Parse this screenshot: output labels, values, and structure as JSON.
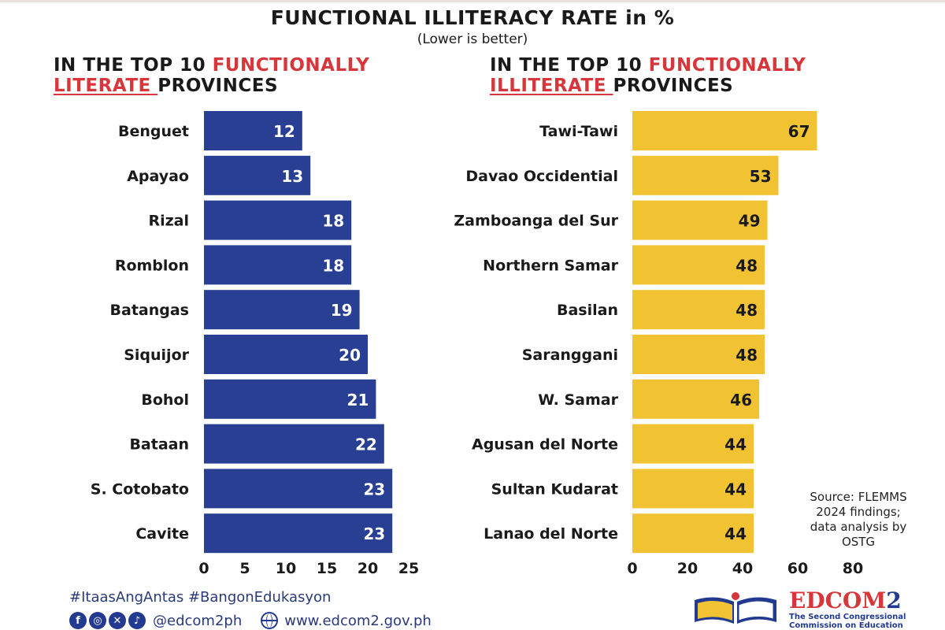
{
  "header": {
    "title": "FUNCTIONAL ILLITERACY RATE in %",
    "subtitle": "(Lower is better)"
  },
  "left_panel": {
    "heading_pre": "IN THE TOP 10 ",
    "heading_hl1": "FUNCTIONALLY",
    "heading_hl2": "LITERATE ",
    "heading_post": "PROVINCES"
  },
  "right_panel": {
    "heading_pre": "IN THE TOP 10 ",
    "heading_hl1": "FUNCTIONALLY",
    "heading_hl2": "ILLITERATE ",
    "heading_post": "PROVINCES"
  },
  "chart_data": [
    {
      "type": "bar",
      "orientation": "horizontal",
      "categories": [
        "Benguet",
        "Apayao",
        "Rizal",
        "Romblon",
        "Batangas",
        "Siquijor",
        "Bohol",
        "Bataan",
        "S. Cotobato",
        "Cavite"
      ],
      "values": [
        12,
        13,
        18,
        18,
        19,
        20,
        21,
        22,
        23,
        23
      ],
      "xlim": [
        0,
        25
      ],
      "xticks": [
        "0",
        "5",
        "10",
        "15",
        "20",
        "25"
      ],
      "data_labels": true,
      "grid": false,
      "bar_color": "#283f94",
      "label_color": "#ffffff"
    },
    {
      "type": "bar",
      "orientation": "horizontal",
      "categories": [
        "Tawi-Tawi",
        "Davao Occidential",
        "Zamboanga del Sur",
        "Northern Samar",
        "Basilan",
        "Saranggani",
        "W. Samar",
        "Agusan del Norte",
        "Sultan Kudarat",
        "Lanao del Norte"
      ],
      "values": [
        67,
        53,
        49,
        48,
        48,
        48,
        46,
        44,
        44,
        44
      ],
      "xlim": [
        0,
        80
      ],
      "xticks": [
        "0",
        "20",
        "40",
        "60",
        "80"
      ],
      "data_labels": true,
      "grid": false,
      "bar_color": "#f1c232",
      "label_color": "#1a1a1a"
    }
  ],
  "source_note": [
    "Source: FLEMMS",
    "2024 findings;",
    "data analysis by",
    "OSTG"
  ],
  "footer": {
    "hashtags": "#ItaasAngAntas #BangonEdukasyon",
    "social_handle": "@edcom2ph",
    "social_icons": [
      "facebook-icon",
      "instagram-icon",
      "x-icon",
      "tiktok-icon"
    ],
    "website": "www.edcom2.gov.ph",
    "logo_main": "EDCOM",
    "logo_num": "2",
    "logo_sub1": "The Second Congressional",
    "logo_sub2": "Commission on Education"
  }
}
